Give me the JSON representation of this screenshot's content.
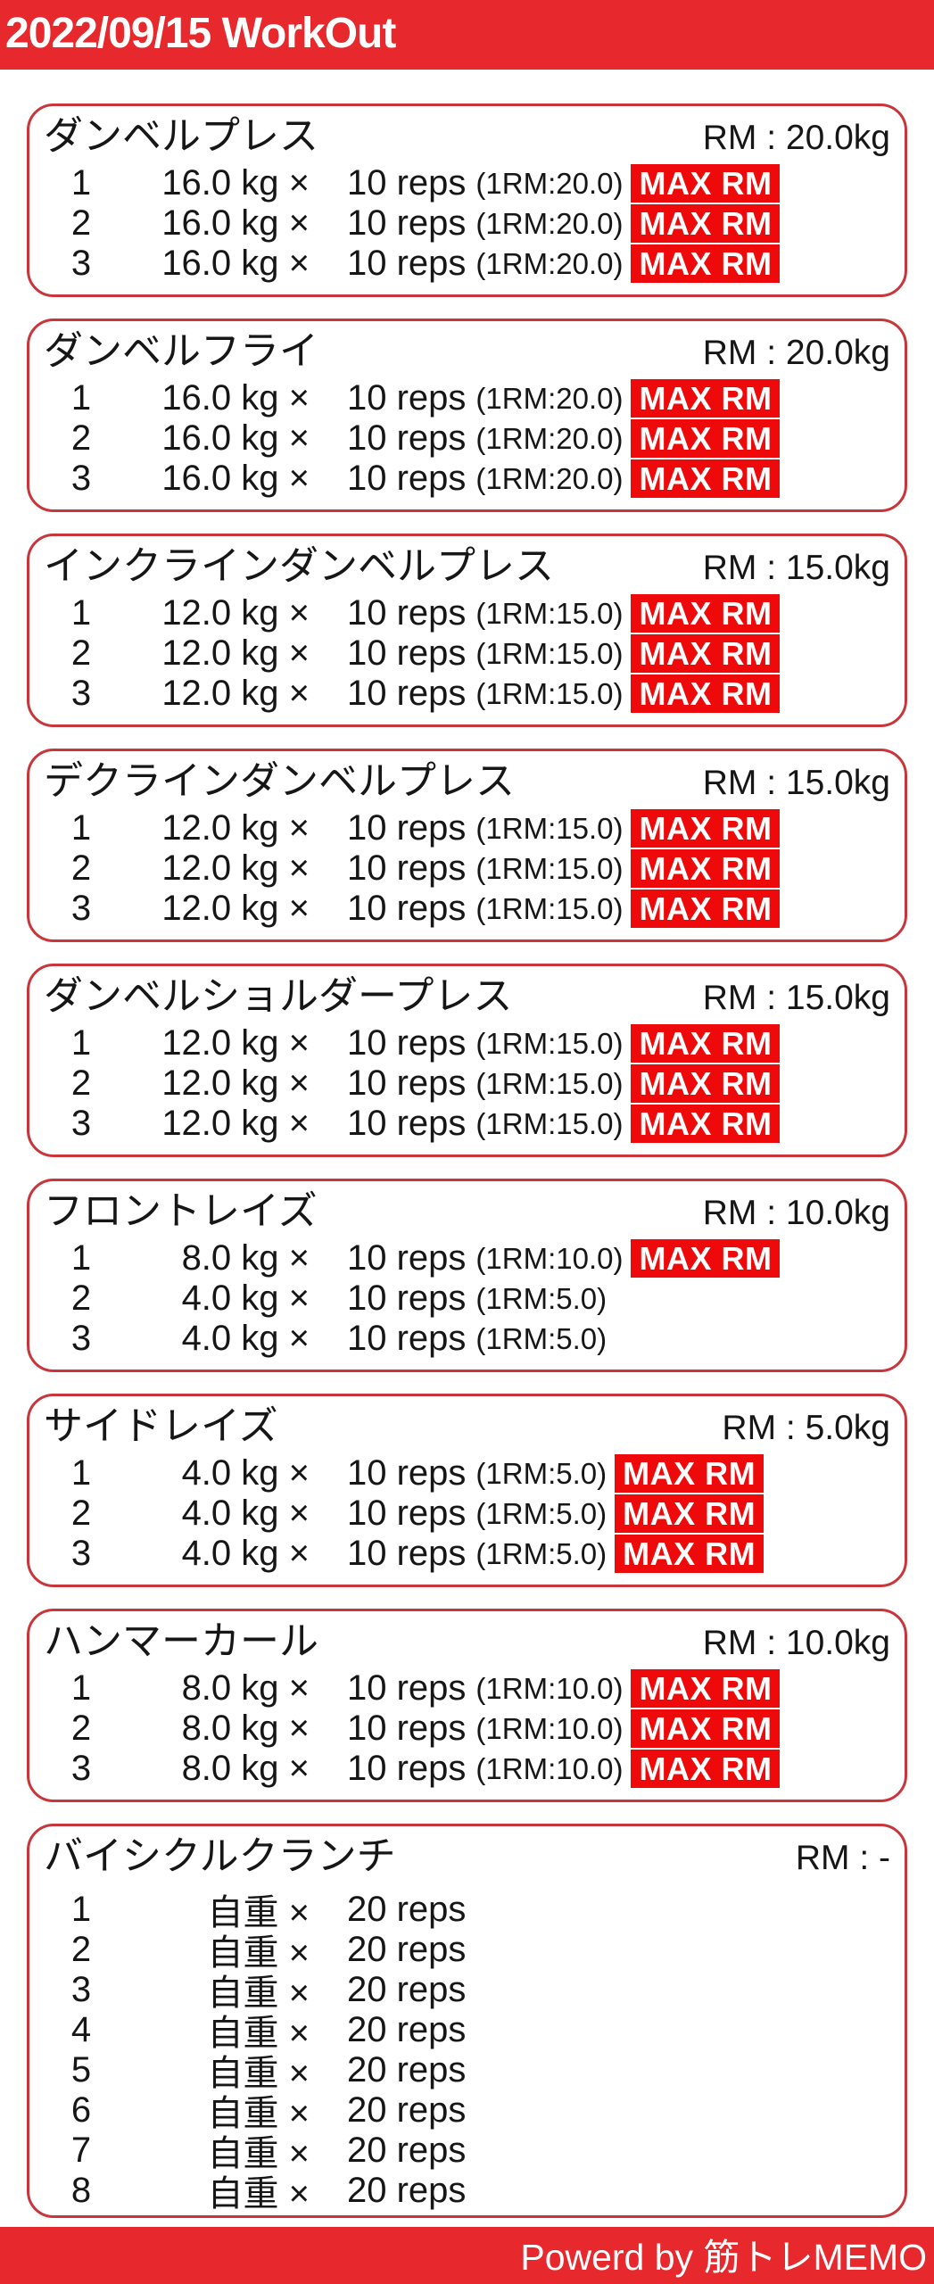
{
  "header": {
    "title": "2022/09/15 WorkOut"
  },
  "footer": {
    "credit": "Powerd by 筋トレMEMO"
  },
  "badge_label": "MAX RM",
  "colors": {
    "header_red": "#e7282c",
    "footer_red": "#e7282c",
    "badge_red": "#ee0a0a",
    "card_border_red": "#c8353a",
    "text": "#161616",
    "background": "#ffffff"
  },
  "exercises": [
    {
      "name": "ダンベルプレス",
      "rm_label": "RM : 20.0kg",
      "sets": [
        {
          "no": "1",
          "weight": "16.0 kg ×",
          "reps": "10 reps",
          "one_rm": "(1RM:20.0)",
          "max_rm": true
        },
        {
          "no": "2",
          "weight": "16.0 kg ×",
          "reps": "10 reps",
          "one_rm": "(1RM:20.0)",
          "max_rm": true
        },
        {
          "no": "3",
          "weight": "16.0 kg ×",
          "reps": "10 reps",
          "one_rm": "(1RM:20.0)",
          "max_rm": true
        }
      ]
    },
    {
      "name": "ダンベルフライ",
      "rm_label": "RM : 20.0kg",
      "sets": [
        {
          "no": "1",
          "weight": "16.0 kg ×",
          "reps": "10 reps",
          "one_rm": "(1RM:20.0)",
          "max_rm": true
        },
        {
          "no": "2",
          "weight": "16.0 kg ×",
          "reps": "10 reps",
          "one_rm": "(1RM:20.0)",
          "max_rm": true
        },
        {
          "no": "3",
          "weight": "16.0 kg ×",
          "reps": "10 reps",
          "one_rm": "(1RM:20.0)",
          "max_rm": true
        }
      ]
    },
    {
      "name": "インクラインダンベルプレス",
      "rm_label": "RM : 15.0kg",
      "sets": [
        {
          "no": "1",
          "weight": "12.0 kg ×",
          "reps": "10 reps",
          "one_rm": "(1RM:15.0)",
          "max_rm": true
        },
        {
          "no": "2",
          "weight": "12.0 kg ×",
          "reps": "10 reps",
          "one_rm": "(1RM:15.0)",
          "max_rm": true
        },
        {
          "no": "3",
          "weight": "12.0 kg ×",
          "reps": "10 reps",
          "one_rm": "(1RM:15.0)",
          "max_rm": true
        }
      ]
    },
    {
      "name": "デクラインダンベルプレス",
      "rm_label": "RM : 15.0kg",
      "sets": [
        {
          "no": "1",
          "weight": "12.0 kg ×",
          "reps": "10 reps",
          "one_rm": "(1RM:15.0)",
          "max_rm": true
        },
        {
          "no": "2",
          "weight": "12.0 kg ×",
          "reps": "10 reps",
          "one_rm": "(1RM:15.0)",
          "max_rm": true
        },
        {
          "no": "3",
          "weight": "12.0 kg ×",
          "reps": "10 reps",
          "one_rm": "(1RM:15.0)",
          "max_rm": true
        }
      ]
    },
    {
      "name": "ダンベルショルダープレス",
      "rm_label": "RM : 15.0kg",
      "sets": [
        {
          "no": "1",
          "weight": "12.0 kg ×",
          "reps": "10 reps",
          "one_rm": "(1RM:15.0)",
          "max_rm": true
        },
        {
          "no": "2",
          "weight": "12.0 kg ×",
          "reps": "10 reps",
          "one_rm": "(1RM:15.0)",
          "max_rm": true
        },
        {
          "no": "3",
          "weight": "12.0 kg ×",
          "reps": "10 reps",
          "one_rm": "(1RM:15.0)",
          "max_rm": true
        }
      ]
    },
    {
      "name": "フロントレイズ",
      "rm_label": "RM : 10.0kg",
      "sets": [
        {
          "no": "1",
          "weight": "8.0 kg ×",
          "reps": "10 reps",
          "one_rm": "(1RM:10.0)",
          "max_rm": true
        },
        {
          "no": "2",
          "weight": "4.0 kg ×",
          "reps": "10 reps",
          "one_rm": "(1RM:5.0)",
          "max_rm": false
        },
        {
          "no": "3",
          "weight": "4.0 kg ×",
          "reps": "10 reps",
          "one_rm": "(1RM:5.0)",
          "max_rm": false
        }
      ]
    },
    {
      "name": "サイドレイズ",
      "rm_label": "RM : 5.0kg",
      "sets": [
        {
          "no": "1",
          "weight": "4.0 kg ×",
          "reps": "10 reps",
          "one_rm": "(1RM:5.0)",
          "max_rm": true
        },
        {
          "no": "2",
          "weight": "4.0 kg ×",
          "reps": "10 reps",
          "one_rm": "(1RM:5.0)",
          "max_rm": true
        },
        {
          "no": "3",
          "weight": "4.0 kg ×",
          "reps": "10 reps",
          "one_rm": "(1RM:5.0)",
          "max_rm": true
        }
      ]
    },
    {
      "name": "ハンマーカール",
      "rm_label": "RM : 10.0kg",
      "sets": [
        {
          "no": "1",
          "weight": "8.0 kg ×",
          "reps": "10 reps",
          "one_rm": "(1RM:10.0)",
          "max_rm": true
        },
        {
          "no": "2",
          "weight": "8.0 kg ×",
          "reps": "10 reps",
          "one_rm": "(1RM:10.0)",
          "max_rm": true
        },
        {
          "no": "3",
          "weight": "8.0 kg ×",
          "reps": "10 reps",
          "one_rm": "(1RM:10.0)",
          "max_rm": true
        }
      ]
    },
    {
      "name": "バイシクルクランチ",
      "rm_label": "RM : -",
      "sets": [
        {
          "no": "1",
          "weight": "自重 ×",
          "reps": "20 reps",
          "one_rm": "",
          "max_rm": false
        },
        {
          "no": "2",
          "weight": "自重 ×",
          "reps": "20 reps",
          "one_rm": "",
          "max_rm": false
        },
        {
          "no": "3",
          "weight": "自重 ×",
          "reps": "20 reps",
          "one_rm": "",
          "max_rm": false
        },
        {
          "no": "4",
          "weight": "自重 ×",
          "reps": "20 reps",
          "one_rm": "",
          "max_rm": false
        },
        {
          "no": "5",
          "weight": "自重 ×",
          "reps": "20 reps",
          "one_rm": "",
          "max_rm": false
        },
        {
          "no": "6",
          "weight": "自重 ×",
          "reps": "20 reps",
          "one_rm": "",
          "max_rm": false
        },
        {
          "no": "7",
          "weight": "自重 ×",
          "reps": "20 reps",
          "one_rm": "",
          "max_rm": false
        },
        {
          "no": "8",
          "weight": "自重 ×",
          "reps": "20 reps",
          "one_rm": "",
          "max_rm": false
        }
      ]
    }
  ]
}
